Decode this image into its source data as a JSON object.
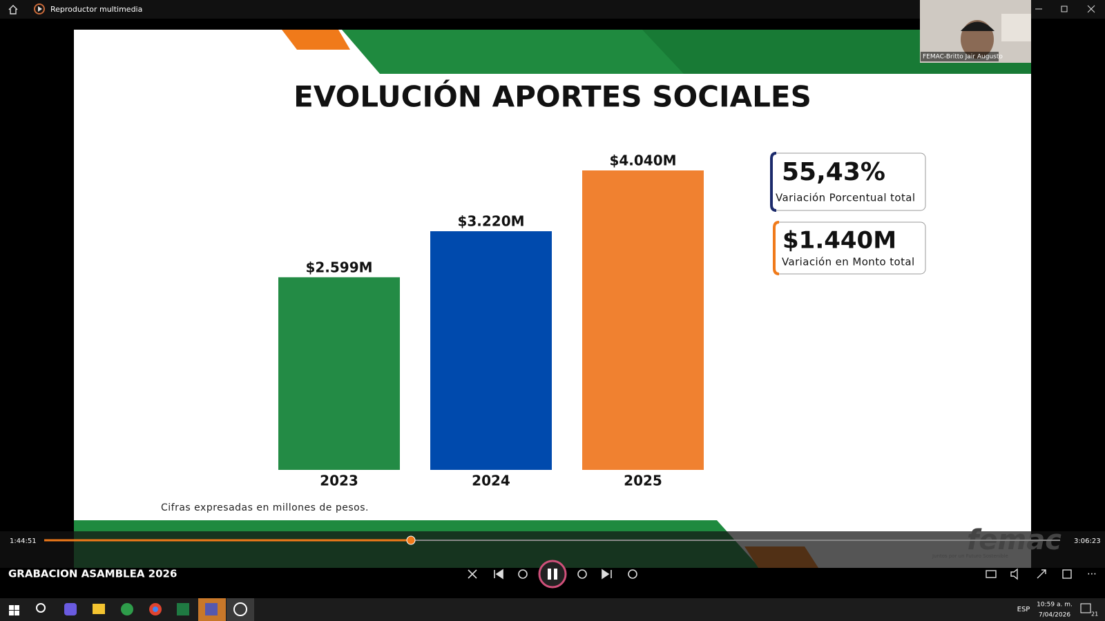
{
  "window": {
    "title": "Reproductor multimedia"
  },
  "webcam": {
    "name": "FEMAC-Britto Jair Augusto"
  },
  "chart_data": {
    "type": "bar",
    "title": "EVOLUCIÓN APORTES SOCIALES",
    "categories": [
      "2023",
      "2024",
      "2025"
    ],
    "values": [
      2599,
      3220,
      4040
    ],
    "value_labels": [
      "$2.599M",
      "$3.220M",
      "$4.040M"
    ],
    "colors": [
      "#238b45",
      "#004aad",
      "#f08130"
    ],
    "note": "Cifras expresadas en millones de pesos."
  },
  "callouts": [
    {
      "value": "55,43%",
      "label": "Variación Porcentual total"
    },
    {
      "value": "$1.440M",
      "label": "Variación en Monto total"
    }
  ],
  "logo": {
    "name": "femac",
    "tagline": "Juntos por un Futuro Sostenible"
  },
  "player": {
    "elapsed": "1:44:51",
    "duration": "3:06:23",
    "media_title": "GRABACION ASAMBLEA 2026"
  },
  "taskbar": {
    "language": "ESP",
    "time": "10:59 a. m.",
    "date": "7/04/2026",
    "notifications": "21"
  }
}
